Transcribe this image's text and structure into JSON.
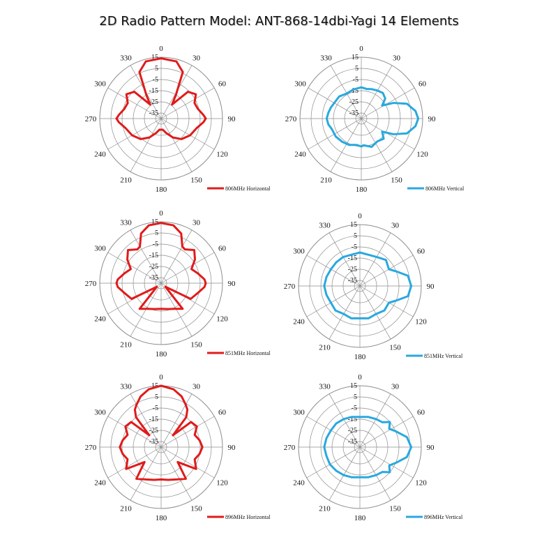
{
  "title": "2D Radio Pattern Model: ANT-868-14dbi-Yagi  14 Elements",
  "colors": {
    "horizontal": "#e01b1b",
    "vertical": "#29a8df",
    "grid": "#8c8c8c"
  },
  "chart_data": [
    {
      "type": "polar-line",
      "series": [
        {
          "name": "806MHz Horizontal",
          "color": "#e01b1b"
        }
      ],
      "r_ticks": [
        "15",
        "5",
        "-5",
        "-15",
        "-25",
        "-35"
      ],
      "r_range": [
        -40,
        15
      ],
      "angle_ticks": [
        "0",
        "30",
        "60",
        "90",
        "120",
        "150",
        "180",
        "210",
        "240",
        "270",
        "300",
        "330"
      ],
      "points": [
        [
          0,
          14
        ],
        [
          15,
          13
        ],
        [
          25,
          6
        ],
        [
          32,
          -15
        ],
        [
          38,
          -24
        ],
        [
          45,
          -6
        ],
        [
          55,
          -2
        ],
        [
          65,
          -7
        ],
        [
          75,
          -6
        ],
        [
          85,
          -2
        ],
        [
          90,
          0
        ],
        [
          95,
          -2
        ],
        [
          105,
          -7
        ],
        [
          120,
          -10
        ],
        [
          135,
          -14
        ],
        [
          148,
          -20
        ],
        [
          160,
          -26
        ],
        [
          172,
          -30
        ],
        [
          180,
          -30
        ],
        [
          188,
          -30
        ],
        [
          200,
          -26
        ],
        [
          212,
          -20
        ],
        [
          225,
          -14
        ],
        [
          240,
          -10
        ],
        [
          255,
          -7
        ],
        [
          265,
          -2
        ],
        [
          270,
          0
        ],
        [
          275,
          -2
        ],
        [
          285,
          -6
        ],
        [
          295,
          -7
        ],
        [
          305,
          -2
        ],
        [
          315,
          -6
        ],
        [
          322,
          -24
        ],
        [
          328,
          -15
        ],
        [
          335,
          6
        ],
        [
          345,
          13
        ],
        [
          360,
          14
        ]
      ]
    },
    {
      "type": "polar-line",
      "series": [
        {
          "name": "806MHz Vertical",
          "color": "#29a8df"
        }
      ],
      "r_ticks": [
        "15",
        "5",
        "-5",
        "-15",
        "-25",
        "-35"
      ],
      "r_range": [
        -40,
        15
      ],
      "angle_ticks": [
        "0",
        "30",
        "60",
        "90",
        "120",
        "150",
        "180",
        "210",
        "240",
        "270",
        "300",
        "330"
      ],
      "points": [
        [
          0,
          -12
        ],
        [
          10,
          -13
        ],
        [
          20,
          -12
        ],
        [
          30,
          -11
        ],
        [
          40,
          -10
        ],
        [
          50,
          -12
        ],
        [
          58,
          -18
        ],
        [
          64,
          -8
        ],
        [
          72,
          3
        ],
        [
          82,
          9
        ],
        [
          90,
          11
        ],
        [
          98,
          9
        ],
        [
          108,
          3
        ],
        [
          116,
          -8
        ],
        [
          122,
          -18
        ],
        [
          132,
          -13
        ],
        [
          145,
          -15
        ],
        [
          160,
          -13
        ],
        [
          175,
          -16
        ],
        [
          180,
          -15
        ],
        [
          190,
          -16
        ],
        [
          205,
          -14
        ],
        [
          220,
          -13
        ],
        [
          235,
          -12
        ],
        [
          250,
          -12
        ],
        [
          260,
          -10
        ],
        [
          270,
          -9
        ],
        [
          280,
          -10
        ],
        [
          290,
          -11
        ],
        [
          300,
          -12
        ],
        [
          315,
          -12
        ],
        [
          330,
          -14
        ],
        [
          345,
          -13
        ],
        [
          360,
          -12
        ]
      ]
    },
    {
      "type": "polar-line",
      "series": [
        {
          "name": "851MHz Horizontal",
          "color": "#e01b1b"
        }
      ],
      "r_ticks": [
        "15",
        "5",
        "-5",
        "-15",
        "-25",
        "-35"
      ],
      "r_range": [
        -40,
        15
      ],
      "angle_ticks": [
        "0",
        "30",
        "60",
        "90",
        "120",
        "150",
        "180",
        "210",
        "240",
        "270",
        "300",
        "330"
      ],
      "points": [
        [
          0,
          14
        ],
        [
          12,
          13
        ],
        [
          22,
          8
        ],
        [
          30,
          -2
        ],
        [
          35,
          -3
        ],
        [
          45,
          2
        ],
        [
          55,
          -3
        ],
        [
          65,
          -10
        ],
        [
          75,
          -6
        ],
        [
          85,
          -1
        ],
        [
          90,
          0
        ],
        [
          95,
          -1
        ],
        [
          105,
          -6
        ],
        [
          118,
          -10
        ],
        [
          130,
          -35
        ],
        [
          140,
          -10
        ],
        [
          152,
          -14
        ],
        [
          165,
          -16
        ],
        [
          180,
          -17
        ],
        [
          195,
          -16
        ],
        [
          208,
          -14
        ],
        [
          220,
          -10
        ],
        [
          230,
          -35
        ],
        [
          242,
          -10
        ],
        [
          255,
          -6
        ],
        [
          265,
          -1
        ],
        [
          270,
          0
        ],
        [
          275,
          -1
        ],
        [
          285,
          -6
        ],
        [
          295,
          -10
        ],
        [
          305,
          -3
        ],
        [
          315,
          2
        ],
        [
          325,
          -3
        ],
        [
          330,
          -2
        ],
        [
          338,
          8
        ],
        [
          348,
          13
        ],
        [
          360,
          14
        ]
      ]
    },
    {
      "type": "polar-line",
      "series": [
        {
          "name": "851MHz Vertical",
          "color": "#29a8df"
        }
      ],
      "r_ticks": [
        "15",
        "5",
        "-5",
        "-15",
        "-25",
        "-35"
      ],
      "r_range": [
        -40,
        15
      ],
      "angle_ticks": [
        "0",
        "30",
        "60",
        "90",
        "120",
        "150",
        "180",
        "210",
        "240",
        "270",
        "300",
        "330"
      ],
      "points": [
        [
          0,
          -10
        ],
        [
          15,
          -11
        ],
        [
          30,
          -10
        ],
        [
          45,
          -7
        ],
        [
          60,
          -10
        ],
        [
          68,
          -5
        ],
        [
          78,
          4
        ],
        [
          90,
          6
        ],
        [
          102,
          4
        ],
        [
          112,
          -5
        ],
        [
          120,
          -10
        ],
        [
          135,
          -9
        ],
        [
          150,
          -11
        ],
        [
          165,
          -10
        ],
        [
          180,
          -11
        ],
        [
          195,
          -10
        ],
        [
          210,
          -11
        ],
        [
          225,
          -9
        ],
        [
          240,
          -10
        ],
        [
          255,
          -9
        ],
        [
          270,
          -8
        ],
        [
          285,
          -9
        ],
        [
          300,
          -10
        ],
        [
          315,
          -10
        ],
        [
          330,
          -10
        ],
        [
          345,
          -11
        ],
        [
          360,
          -10
        ]
      ]
    },
    {
      "type": "polar-line",
      "series": [
        {
          "name": "896MHz Horizontal",
          "color": "#e01b1b"
        }
      ],
      "r_ticks": [
        "15",
        "5",
        "-5",
        "-15",
        "-25",
        "-35"
      ],
      "r_range": [
        -40,
        15
      ],
      "angle_ticks": [
        "0",
        "30",
        "60",
        "90",
        "120",
        "150",
        "180",
        "210",
        "240",
        "270",
        "300",
        "330"
      ],
      "points": [
        [
          0,
          15
        ],
        [
          12,
          13
        ],
        [
          22,
          9
        ],
        [
          30,
          4
        ],
        [
          35,
          1
        ],
        [
          40,
          -5
        ],
        [
          45,
          -25
        ],
        [
          50,
          -5
        ],
        [
          60,
          -3
        ],
        [
          70,
          -8
        ],
        [
          80,
          -5
        ],
        [
          90,
          -3
        ],
        [
          100,
          -5
        ],
        [
          110,
          -8
        ],
        [
          122,
          -3
        ],
        [
          132,
          -20
        ],
        [
          142,
          -4
        ],
        [
          155,
          -8
        ],
        [
          168,
          -10
        ],
        [
          180,
          -11
        ],
        [
          192,
          -10
        ],
        [
          205,
          -8
        ],
        [
          218,
          -4
        ],
        [
          228,
          -20
        ],
        [
          238,
          -3
        ],
        [
          250,
          -8
        ],
        [
          260,
          -5
        ],
        [
          270,
          -3
        ],
        [
          280,
          -5
        ],
        [
          290,
          -8
        ],
        [
          300,
          -3
        ],
        [
          310,
          -5
        ],
        [
          315,
          -25
        ],
        [
          320,
          -5
        ],
        [
          325,
          1
        ],
        [
          330,
          4
        ],
        [
          338,
          9
        ],
        [
          348,
          13
        ],
        [
          360,
          15
        ]
      ]
    },
    {
      "type": "polar-line",
      "series": [
        {
          "name": "896MHz Vertical",
          "color": "#29a8df"
        }
      ],
      "r_ticks": [
        "15",
        "5",
        "-5",
        "-15",
        "-25",
        "-35"
      ],
      "r_range": [
        -40,
        15
      ],
      "angle_ticks": [
        "0",
        "30",
        "60",
        "90",
        "120",
        "150",
        "180",
        "210",
        "240",
        "270",
        "300",
        "330"
      ],
      "points": [
        [
          0,
          -13
        ],
        [
          15,
          -12
        ],
        [
          30,
          -11
        ],
        [
          42,
          -10
        ],
        [
          50,
          -5
        ],
        [
          58,
          -9
        ],
        [
          66,
          -5
        ],
        [
          78,
          3
        ],
        [
          90,
          6
        ],
        [
          102,
          3
        ],
        [
          114,
          -5
        ],
        [
          122,
          -9
        ],
        [
          130,
          -5
        ],
        [
          138,
          -10
        ],
        [
          150,
          -11
        ],
        [
          165,
          -12
        ],
        [
          180,
          -13
        ],
        [
          195,
          -12
        ],
        [
          210,
          -11
        ],
        [
          225,
          -10
        ],
        [
          240,
          -9
        ],
        [
          255,
          -9
        ],
        [
          270,
          -8
        ],
        [
          285,
          -9
        ],
        [
          300,
          -10
        ],
        [
          315,
          -10
        ],
        [
          330,
          -11
        ],
        [
          345,
          -12
        ],
        [
          360,
          -13
        ]
      ]
    }
  ]
}
